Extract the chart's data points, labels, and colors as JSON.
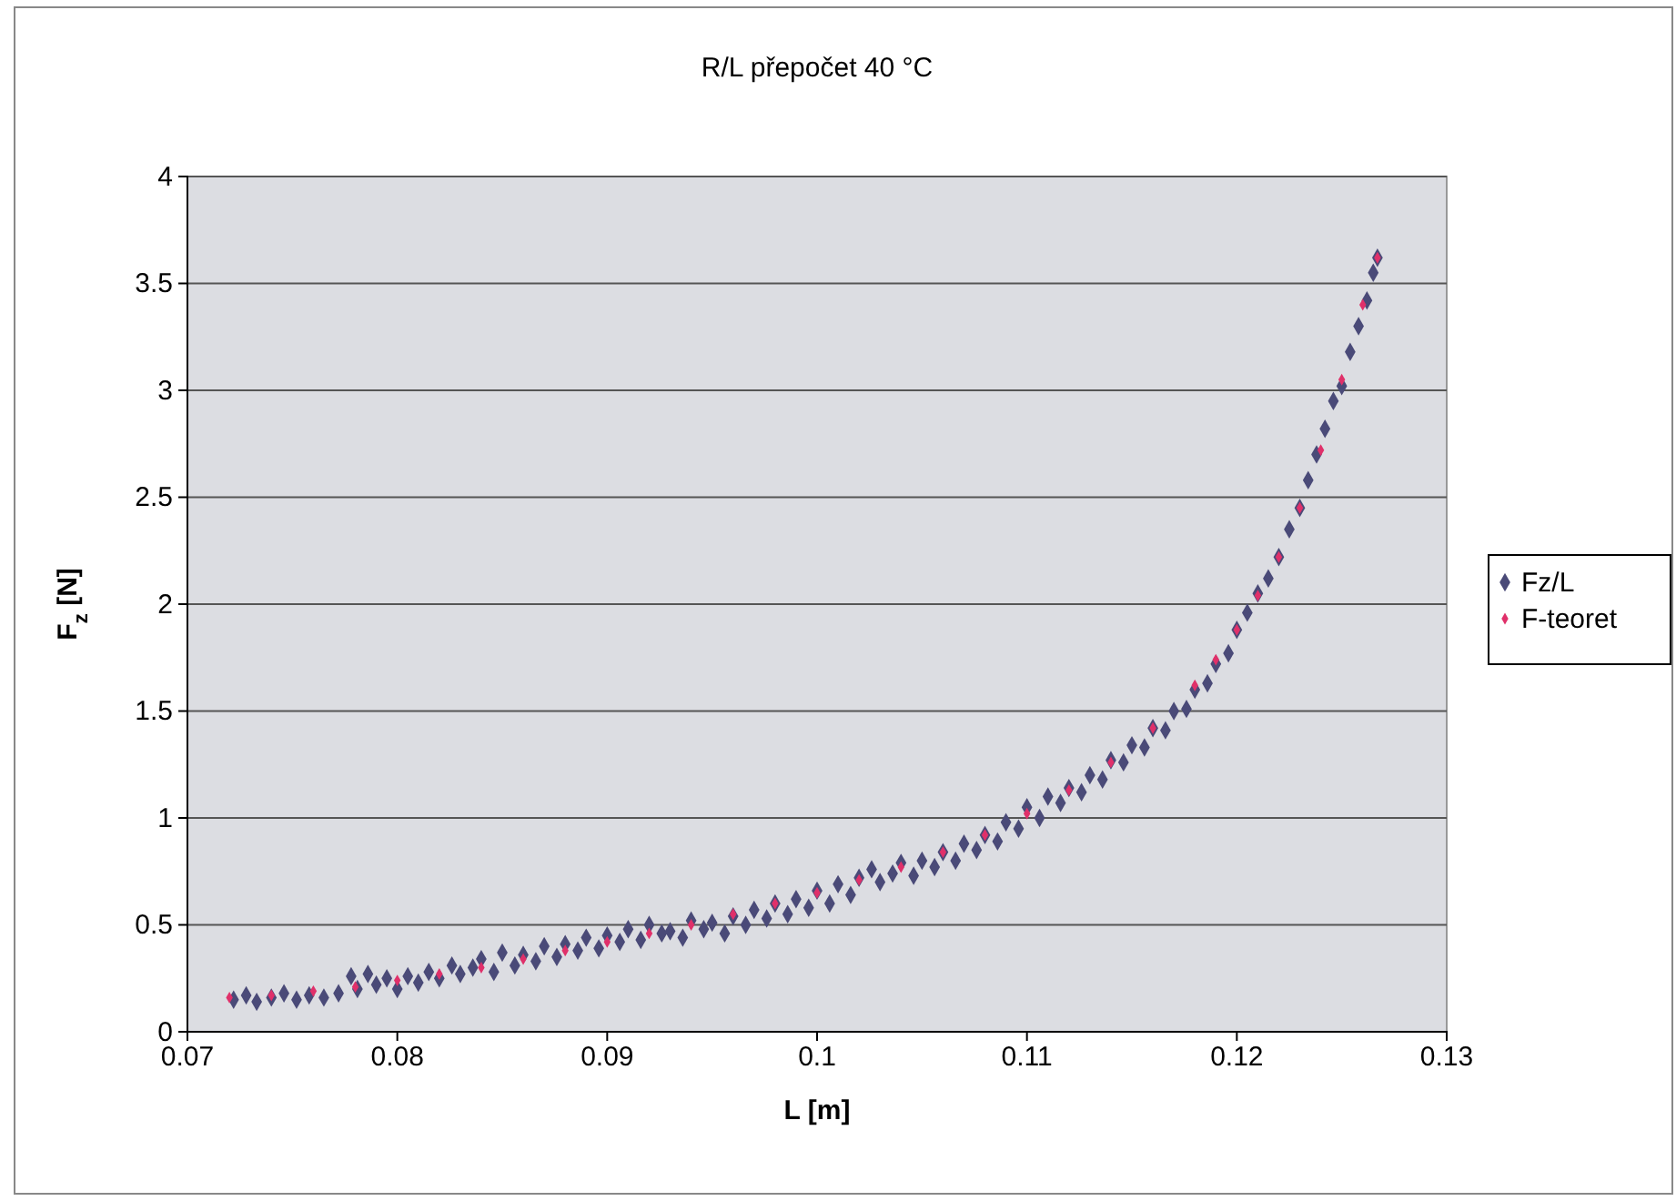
{
  "chart_data": {
    "type": "scatter",
    "title": "R/L přepočet 40 °C",
    "xlabel": "L [m]",
    "ylabel": "F$_{z}$ [N]",
    "xlim": [
      0.07,
      0.13
    ],
    "xticks": [
      0.07,
      0.08,
      0.09,
      0.1,
      0.11,
      0.12,
      0.13
    ],
    "ylim": [
      0,
      4
    ],
    "yticks": [
      0,
      0.5,
      1,
      1.5,
      2,
      2.5,
      3,
      3.5,
      4
    ],
    "grid": "y",
    "legend": "right",
    "marker": "diamond",
    "series": [
      {
        "name": "Fz/L",
        "color": "#4a4a78",
        "x": [
          0.0722,
          0.0728,
          0.0733,
          0.074,
          0.0746,
          0.0752,
          0.0758,
          0.0765,
          0.0772,
          0.0778,
          0.0781,
          0.0786,
          0.079,
          0.0795,
          0.08,
          0.0805,
          0.081,
          0.0815,
          0.082,
          0.0826,
          0.083,
          0.0836,
          0.084,
          0.0846,
          0.085,
          0.0856,
          0.086,
          0.0866,
          0.087,
          0.0876,
          0.088,
          0.0886,
          0.089,
          0.0896,
          0.09,
          0.0906,
          0.091,
          0.0916,
          0.092,
          0.0926,
          0.093,
          0.0936,
          0.094,
          0.0946,
          0.095,
          0.0956,
          0.096,
          0.0966,
          0.097,
          0.0976,
          0.098,
          0.0986,
          0.099,
          0.0996,
          0.1,
          0.1006,
          0.101,
          0.1016,
          0.102,
          0.1026,
          0.103,
          0.1036,
          0.104,
          0.1046,
          0.105,
          0.1056,
          0.106,
          0.1066,
          0.107,
          0.1076,
          0.108,
          0.1086,
          0.109,
          0.1096,
          0.11,
          0.1106,
          0.111,
          0.1116,
          0.112,
          0.1126,
          0.113,
          0.1136,
          0.114,
          0.1146,
          0.115,
          0.1156,
          0.116,
          0.1166,
          0.117,
          0.1176,
          0.118,
          0.1186,
          0.119,
          0.1196,
          0.12,
          0.1205,
          0.121,
          0.1215,
          0.122,
          0.1225,
          0.123,
          0.1234,
          0.1238,
          0.1242,
          0.1246,
          0.125,
          0.1254,
          0.1258,
          0.1262,
          0.1265,
          0.1267
        ],
        "values": [
          0.15,
          0.17,
          0.14,
          0.16,
          0.18,
          0.15,
          0.17,
          0.16,
          0.18,
          0.26,
          0.2,
          0.27,
          0.22,
          0.25,
          0.2,
          0.26,
          0.23,
          0.28,
          0.25,
          0.31,
          0.27,
          0.3,
          0.34,
          0.28,
          0.37,
          0.31,
          0.36,
          0.33,
          0.4,
          0.35,
          0.41,
          0.38,
          0.44,
          0.39,
          0.45,
          0.42,
          0.48,
          0.43,
          0.5,
          0.46,
          0.47,
          0.44,
          0.52,
          0.48,
          0.51,
          0.46,
          0.54,
          0.5,
          0.57,
          0.53,
          0.6,
          0.55,
          0.62,
          0.58,
          0.66,
          0.6,
          0.69,
          0.64,
          0.72,
          0.76,
          0.7,
          0.74,
          0.79,
          0.73,
          0.8,
          0.77,
          0.84,
          0.8,
          0.88,
          0.85,
          0.92,
          0.89,
          0.98,
          0.95,
          1.05,
          1.0,
          1.1,
          1.07,
          1.14,
          1.12,
          1.2,
          1.18,
          1.27,
          1.26,
          1.34,
          1.33,
          1.42,
          1.41,
          1.5,
          1.51,
          1.6,
          1.63,
          1.72,
          1.77,
          1.88,
          1.96,
          2.05,
          2.12,
          2.22,
          2.35,
          2.45,
          2.58,
          2.7,
          2.82,
          2.95,
          3.02,
          3.18,
          3.3,
          3.42,
          3.55,
          3.62
        ]
      },
      {
        "name": "F-teoret",
        "color": "#e0306a",
        "x": [
          0.072,
          0.074,
          0.076,
          0.078,
          0.08,
          0.082,
          0.084,
          0.086,
          0.088,
          0.09,
          0.092,
          0.094,
          0.096,
          0.098,
          0.1,
          0.102,
          0.104,
          0.106,
          0.108,
          0.11,
          0.112,
          0.114,
          0.116,
          0.118,
          0.119,
          0.12,
          0.121,
          0.122,
          0.123,
          0.124,
          0.125,
          0.126,
          0.1267
        ],
        "values": [
          0.16,
          0.17,
          0.19,
          0.21,
          0.24,
          0.27,
          0.3,
          0.34,
          0.38,
          0.42,
          0.46,
          0.5,
          0.55,
          0.6,
          0.65,
          0.71,
          0.77,
          0.84,
          0.92,
          1.02,
          1.13,
          1.26,
          1.42,
          1.62,
          1.74,
          1.88,
          2.04,
          2.22,
          2.45,
          2.72,
          3.05,
          3.4,
          3.62
        ]
      }
    ]
  }
}
